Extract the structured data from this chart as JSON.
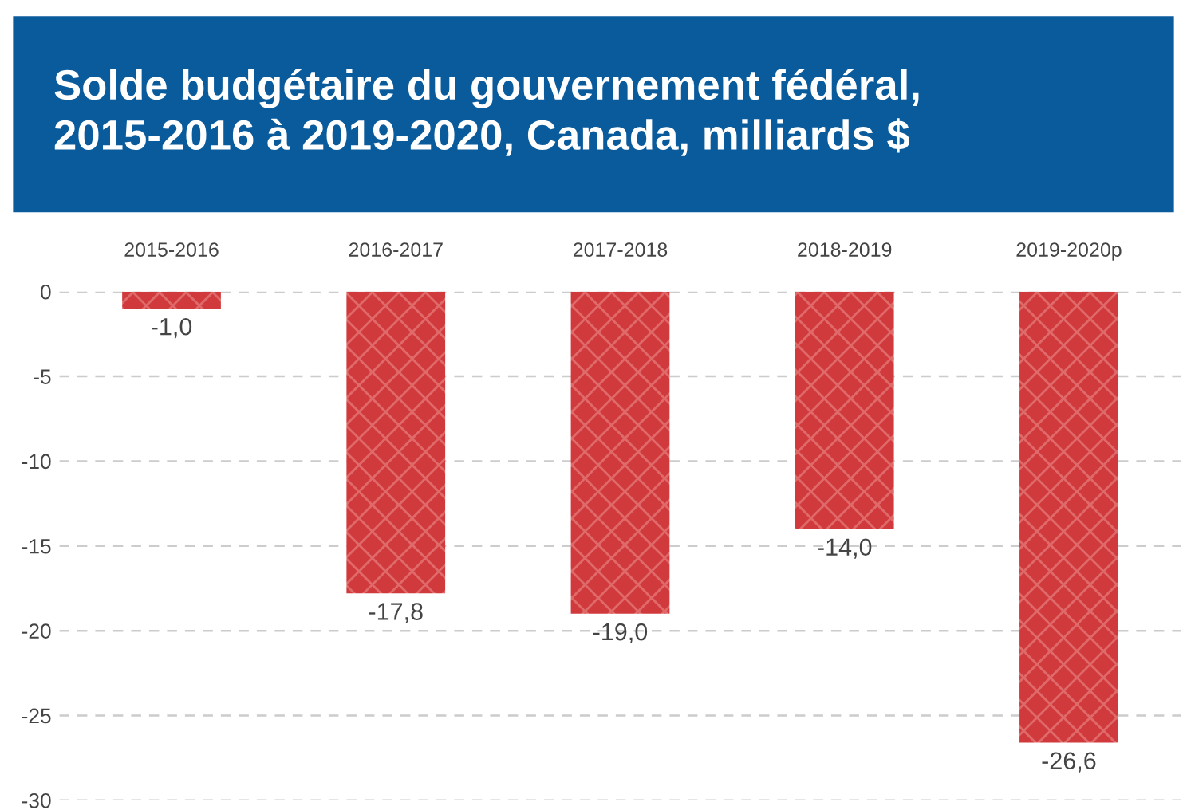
{
  "chart_data": {
    "type": "bar",
    "title": "Solde budgétaire du gouvernement fédéral,\n2015-2016 à 2019-2020, Canada, milliards $",
    "categories": [
      "2015-2016",
      "2016-2017",
      "2017-2018",
      "2018-2019",
      "2019-2020p"
    ],
    "values": [
      -1.0,
      -17.8,
      -19.0,
      -14.0,
      -26.6
    ],
    "value_labels": [
      "-1,0",
      "-17,8",
      "-19,0",
      "-14,0",
      "-26,6"
    ],
    "color": "#d13a3c",
    "ylim": [
      -30,
      0
    ],
    "yticks": [
      -30,
      -25,
      -20,
      -15,
      -10,
      -5,
      0
    ],
    "grid": "y"
  }
}
